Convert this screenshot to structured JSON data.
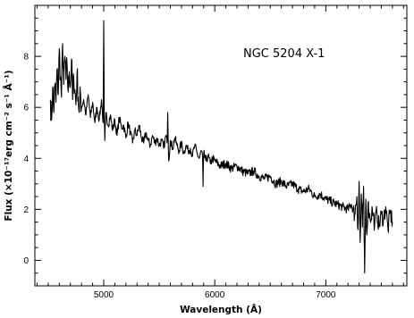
{
  "chart_data": {
    "type": "line",
    "title": "",
    "annotation": "NGC 5204 X-1",
    "xlabel": "Wavelength (Å)",
    "ylabel": "Flux (×10⁻¹⁷erg cm⁻² s⁻¹ Å⁻¹)",
    "xlim": [
      4380,
      7730
    ],
    "ylim": [
      -1,
      10
    ],
    "x_major_ticks": [
      5000,
      6000,
      7000
    ],
    "y_major_ticks": [
      0,
      2,
      4,
      6,
      8
    ],
    "x_minor_step": 100,
    "y_minor_step": 0.5,
    "grid": false,
    "legend": "none",
    "series": [
      {
        "x": [
          4520,
          4530,
          4540,
          4550,
          4560,
          4570,
          4580,
          4590,
          4600,
          4610,
          4620,
          4630,
          4640,
          4650,
          4660,
          4670,
          4680,
          4690,
          4700,
          4710,
          4720,
          4730,
          4740,
          4750,
          4760,
          4770,
          4780,
          4790,
          4800,
          4820,
          4840,
          4860,
          4880,
          4900,
          4920,
          4940,
          4960,
          4980,
          4995,
          5000,
          5005,
          5010,
          5020,
          5040,
          5060,
          5080,
          5100,
          5120,
          5140,
          5160,
          5180,
          5200,
          5220,
          5240,
          5260,
          5280,
          5300,
          5320,
          5340,
          5360,
          5380,
          5400,
          5420,
          5440,
          5460,
          5480,
          5500,
          5520,
          5540,
          5560,
          5570,
          5577,
          5585,
          5600,
          5620,
          5640,
          5660,
          5680,
          5700,
          5720,
          5740,
          5760,
          5780,
          5800,
          5820,
          5840,
          5860,
          5880,
          5890,
          5895,
          5900,
          5920,
          5940,
          5960,
          5980,
          6000,
          6050,
          6100,
          6150,
          6200,
          6250,
          6300,
          6350,
          6400,
          6450,
          6500,
          6550,
          6600,
          6650,
          6700,
          6750,
          6800,
          6850,
          6900,
          6950,
          7000,
          7050,
          7100,
          7150,
          7200,
          7230,
          7260,
          7280,
          7290,
          7300,
          7310,
          7320,
          7330,
          7340,
          7345,
          7350,
          7360,
          7370,
          7380,
          7400,
          7420,
          7440,
          7460,
          7480,
          7500,
          7520,
          7540,
          7560,
          7580,
          7600
        ],
        "y": [
          6.3,
          5.5,
          6.8,
          5.8,
          6.9,
          6.2,
          7.5,
          6.5,
          8.3,
          7.2,
          6.4,
          8.5,
          6.9,
          8.0,
          7.1,
          7.7,
          6.6,
          7.4,
          6.8,
          7.9,
          6.3,
          7.2,
          6.7,
          6.1,
          7.4,
          6.4,
          5.8,
          6.6,
          6.0,
          6.3,
          5.7,
          6.5,
          5.6,
          6.2,
          5.4,
          6.0,
          5.5,
          6.3,
          5.4,
          9.4,
          5.6,
          4.7,
          5.8,
          5.3,
          5.7,
          5.1,
          5.5,
          4.9,
          5.6,
          5.2,
          5.3,
          4.8,
          5.4,
          5.0,
          4.6,
          5.1,
          4.9,
          5.3,
          4.8,
          4.6,
          5.0,
          4.7,
          4.5,
          4.9,
          4.6,
          4.8,
          4.5,
          4.7,
          4.4,
          4.9,
          4.6,
          5.8,
          3.9,
          4.7,
          4.4,
          4.8,
          4.5,
          4.3,
          4.6,
          4.2,
          4.5,
          4.3,
          4.4,
          4.1,
          4.5,
          4.2,
          4.0,
          4.3,
          4.1,
          2.9,
          4.2,
          3.9,
          4.1,
          3.8,
          4.0,
          3.9,
          3.7,
          3.8,
          3.6,
          3.7,
          3.5,
          3.4,
          3.5,
          3.3,
          3.2,
          3.3,
          3.0,
          3.1,
          2.9,
          3.0,
          2.8,
          2.7,
          2.8,
          2.5,
          2.6,
          2.4,
          2.3,
          2.2,
          2.1,
          2.0,
          2.2,
          1.8,
          2.5,
          1.2,
          3.1,
          0.7,
          2.6,
          1.3,
          2.9,
          0.8,
          -0.5,
          2.4,
          1.0,
          2.2,
          1.6,
          2.0,
          1.4,
          1.9,
          1.3,
          1.8,
          1.6,
          2.1,
          1.2,
          1.9,
          1.5
        ]
      }
    ]
  }
}
